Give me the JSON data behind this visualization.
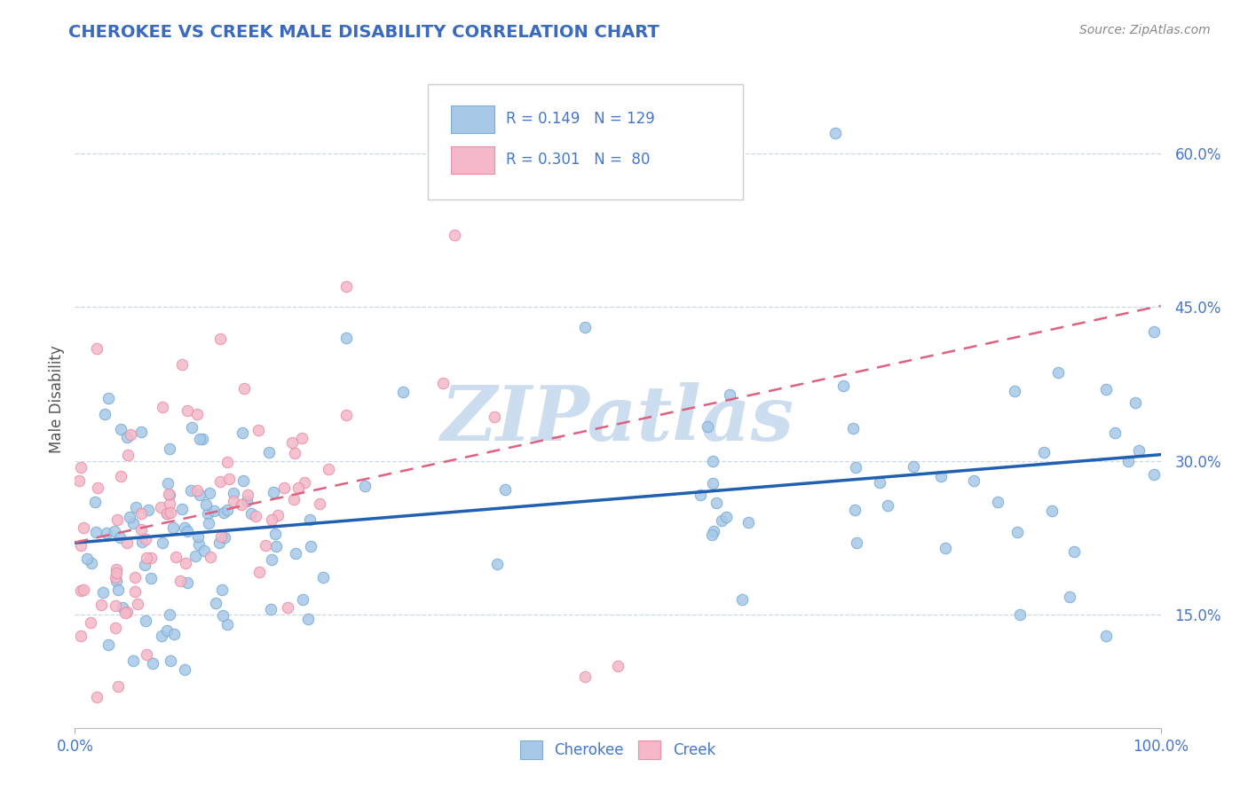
{
  "title": "CHEROKEE VS CREEK MALE DISABILITY CORRELATION CHART",
  "source_text": "Source: ZipAtlas.com",
  "ylabel": "Male Disability",
  "xlim": [
    0.0,
    1.0
  ],
  "ylim": [
    0.04,
    0.68
  ],
  "yticks": [
    0.15,
    0.3,
    0.45,
    0.6
  ],
  "ytick_labels": [
    "15.0%",
    "30.0%",
    "45.0%",
    "60.0%"
  ],
  "cherokee_color": "#a8c8e8",
  "creek_color": "#f4b8c8",
  "cherokee_edge_color": "#7aadd4",
  "creek_edge_color": "#e890aa",
  "cherokee_line_color": "#2060b0",
  "creek_line_color": "#e06080",
  "cherokee_R": 0.149,
  "cherokee_N": 129,
  "creek_R": 0.301,
  "creek_N": 80,
  "label_color": "#4477cc",
  "title_color": "#3a6abf",
  "watermark_color": "#ccddf0",
  "background_color": "#ffffff",
  "grid_color": "#c8d8e8"
}
